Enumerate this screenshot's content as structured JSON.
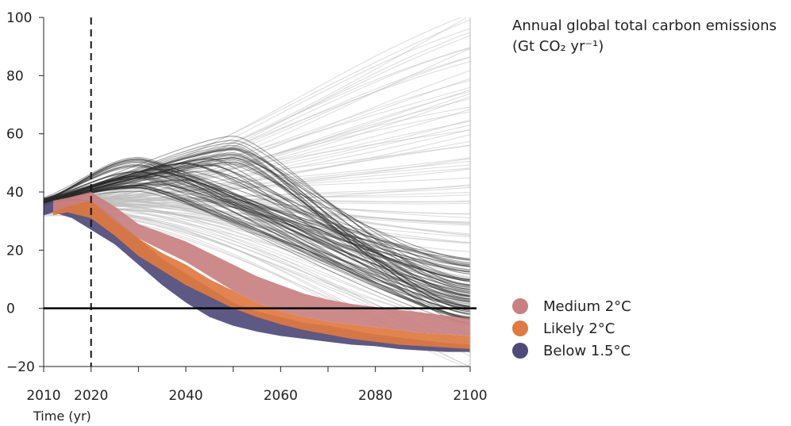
{
  "chart_data": {
    "type": "line",
    "title": "Annual global total carbon emissions",
    "title_unit": "(Gt CO₂ yr⁻¹)",
    "xlabel": "Time (yr)",
    "ylabel": "",
    "xlim": [
      2010,
      2100
    ],
    "ylim": [
      -20,
      100
    ],
    "x_ticks": [
      2010,
      2020,
      2040,
      2060,
      2080,
      2100
    ],
    "x_minor_ticks": [
      2010,
      2020,
      2030,
      2040,
      2050,
      2060,
      2070,
      2080,
      2090,
      2100
    ],
    "y_ticks": [
      -20,
      0,
      20,
      40,
      60,
      80,
      100
    ],
    "reference_line_year": 2020,
    "zero_line": 0,
    "legend_position": "right",
    "series": [
      {
        "name": "Medium 2°C",
        "color": "#c98080",
        "x": [
          2012,
          2015,
          2020,
          2025,
          2030,
          2035,
          2040,
          2045,
          2050,
          2055,
          2060,
          2065,
          2070,
          2075,
          2080,
          2085,
          2090,
          2095,
          2100
        ],
        "upper": [
          37,
          38,
          40,
          35,
          29,
          26,
          23,
          19,
          15,
          11,
          8,
          5,
          3,
          1.5,
          0.5,
          -0.5,
          -1.5,
          -2.5,
          -3.5
        ],
        "lower": [
          33,
          35,
          37,
          30,
          24,
          20,
          16,
          11,
          6,
          2,
          -1,
          -3,
          -4.5,
          -5.5,
          -6.5,
          -7.5,
          -8.5,
          -9,
          -9.5
        ]
      },
      {
        "name": "Likely 2°C",
        "color": "#e07a40",
        "x": [
          2012,
          2015,
          2020,
          2025,
          2030,
          2035,
          2040,
          2045,
          2050,
          2055,
          2060,
          2065,
          2070,
          2075,
          2080,
          2085,
          2090,
          2095,
          2100
        ],
        "upper": [
          36,
          37,
          37,
          31,
          24,
          19,
          15,
          10,
          6,
          2,
          -1,
          -3,
          -4.5,
          -5.5,
          -6.5,
          -7.5,
          -8.5,
          -9,
          -9.5
        ],
        "lower": [
          32,
          33,
          31,
          25,
          18,
          13,
          8,
          4,
          0,
          -3,
          -5.5,
          -7.5,
          -9,
          -10.5,
          -11.5,
          -12.5,
          -13,
          -13.5,
          -14
        ]
      },
      {
        "name": "Below 1.5°C",
        "color": "#4f4a7a",
        "x": [
          2005,
          2008,
          2012,
          2016,
          2020,
          2025,
          2030,
          2035,
          2040,
          2045,
          2050,
          2055,
          2060,
          2065,
          2070,
          2075,
          2080,
          2085,
          2090,
          2095,
          2100
        ],
        "upper": [
          34,
          35,
          37,
          38,
          37,
          31,
          24,
          17,
          12,
          7,
          2,
          -1,
          -3,
          -5,
          -6,
          -7.5,
          -9,
          -10,
          -11,
          -12,
          -12.5
        ],
        "lower": [
          30,
          31,
          33,
          31,
          27,
          22,
          15,
          8,
          2,
          -3,
          -6,
          -8,
          -9.5,
          -10.5,
          -11.5,
          -12.5,
          -13,
          -14,
          -14.5,
          -15,
          -15
        ]
      }
    ],
    "background_scenarios": {
      "description_color_light": "#bdbdbd",
      "description_color_dark": "#2a2a2a",
      "light_endpoints_2100": [
        100,
        95,
        90,
        85,
        80,
        76,
        72,
        68,
        64,
        60,
        56,
        52,
        48,
        44,
        40,
        36,
        33,
        30,
        27,
        24,
        21,
        18,
        15,
        12,
        9,
        6,
        3,
        0,
        -4,
        -8,
        -12,
        -16,
        -20
      ],
      "dark_endpoints_2100": [
        17,
        15,
        13,
        11,
        9,
        8,
        7,
        6,
        5,
        4,
        3,
        2,
        1,
        0,
        -1,
        -2,
        -3,
        -4,
        -5
      ],
      "dark_peaks": [
        {
          "peak_year": 2050,
          "peak_value": 60
        },
        {
          "peak_year": 2050,
          "peak_value": 55
        },
        {
          "peak_year": 2045,
          "peak_value": 52
        },
        {
          "peak_year": 2040,
          "peak_value": 50
        },
        {
          "peak_year": 2035,
          "peak_value": 48
        },
        {
          "peak_year": 2030,
          "peak_value": 52
        },
        {
          "peak_year": 2030,
          "peak_value": 46
        }
      ]
    }
  }
}
